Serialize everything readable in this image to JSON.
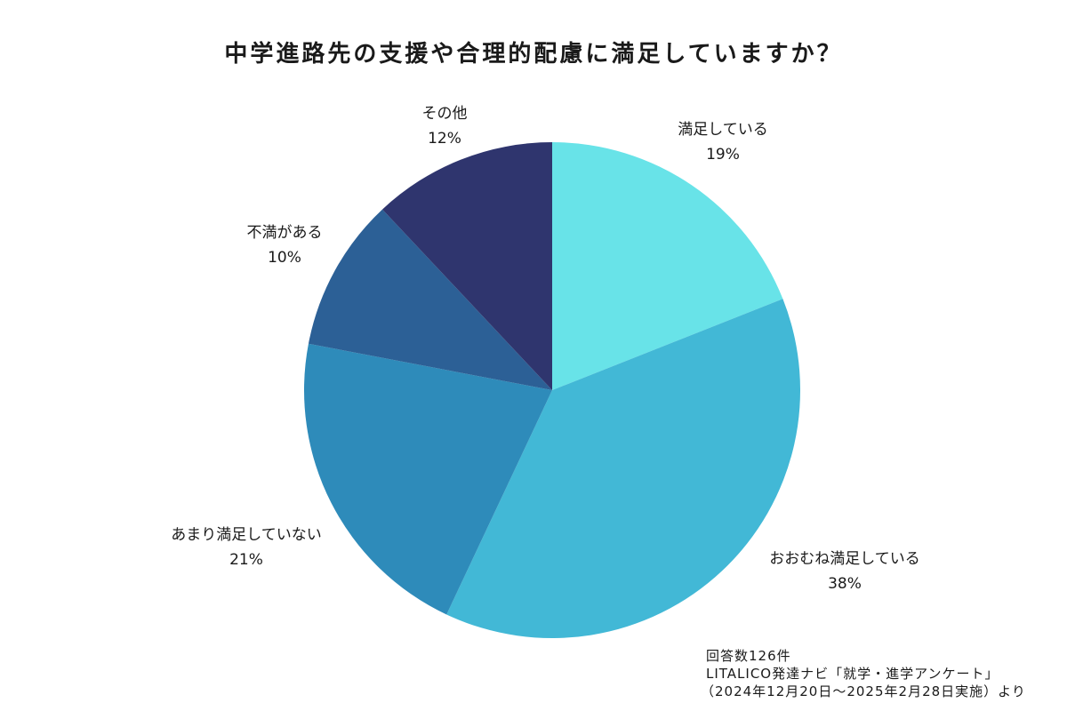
{
  "chart_data": {
    "type": "pie",
    "title": "中学進路先の支援や合理的配慮に満足していますか？",
    "slices": [
      {
        "label": "満足している",
        "value": 19,
        "display": "19%",
        "color": "#68e3e8"
      },
      {
        "label": "おおむね満足している",
        "value": 38,
        "display": "38%",
        "color": "#42b8d6"
      },
      {
        "label": "あまり満足していない",
        "value": 21,
        "display": "21%",
        "color": "#2e8bba"
      },
      {
        "label": "不満がある",
        "value": 10,
        "display": "10%",
        "color": "#2c6096"
      },
      {
        "label": "その他",
        "value": 12,
        "display": "12%",
        "color": "#2f356e"
      }
    ]
  },
  "footnote": {
    "responses": "回答数126件",
    "source": "LITALICO発達ナビ「就学・進学アンケート」",
    "period": "（2024年12月20日～2025年2月28日実施）より"
  }
}
